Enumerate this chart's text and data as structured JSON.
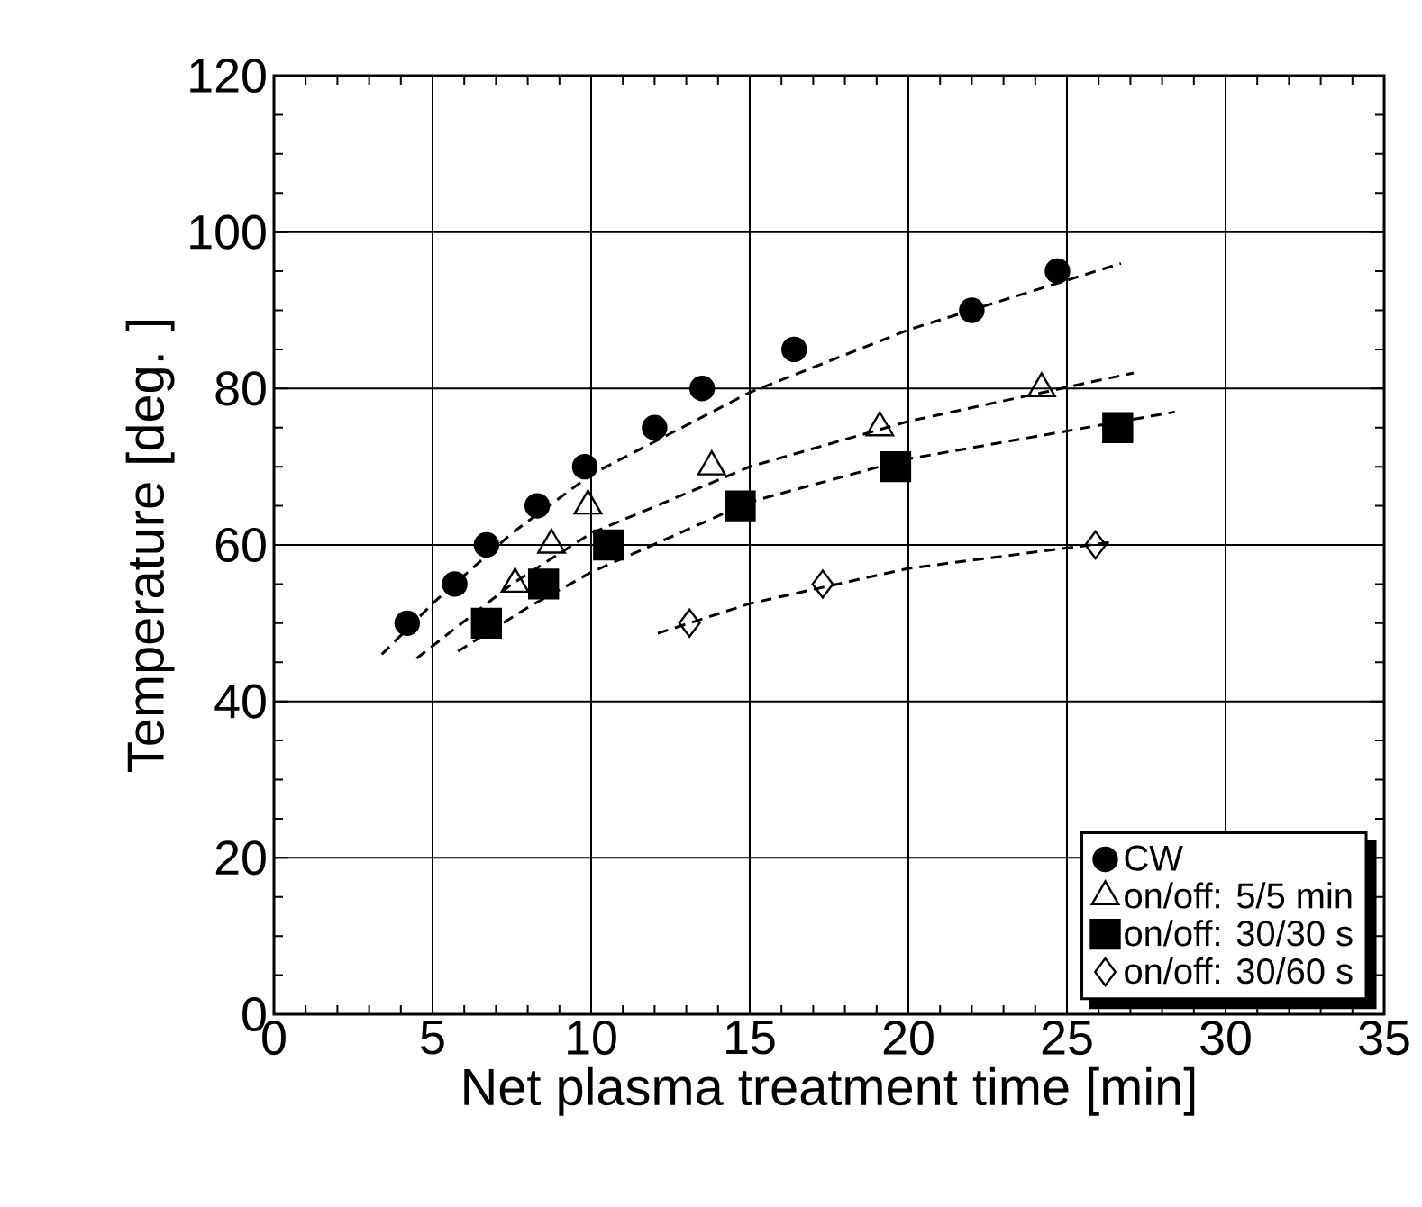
{
  "chart_data": {
    "type": "scatter",
    "xlabel": "Net plasma treatment time [min]",
    "ylabel": "Temperature [deg. ]",
    "xlim": [
      0,
      35
    ],
    "xticks": [
      0,
      5,
      10,
      15,
      20,
      25,
      30,
      35
    ],
    "ylim": [
      0,
      120
    ],
    "yticks": [
      0,
      20,
      40,
      60,
      80,
      100,
      120
    ],
    "grid": true,
    "legend": "bottom right",
    "series": [
      {
        "name": "CW",
        "color": "#000000",
        "marker": "circle",
        "x": [
          4.2,
          5.7,
          6.7,
          8.3,
          9.8,
          12.0,
          13.5,
          16.4,
          22.0,
          24.7
        ],
        "values": [
          50,
          55,
          60,
          65,
          70,
          75,
          80,
          85,
          90,
          95
        ]
      },
      {
        "name": "on/off: 5/5 min",
        "color": "#000000",
        "marker": "triangle",
        "x": [
          7.6,
          8.75,
          9.9,
          13.8,
          19.1,
          24.2
        ],
        "values": [
          55,
          60,
          65,
          70,
          75,
          80
        ]
      },
      {
        "name": "on/off: 30/30 s",
        "color": "#000000",
        "marker": "square",
        "x": [
          6.7,
          8.5,
          10.55,
          14.7,
          19.6,
          26.6
        ],
        "values": [
          50,
          55,
          60,
          65,
          70,
          75
        ]
      },
      {
        "name": "on/off: 30/60 s",
        "color": "#000000",
        "marker": "diamond",
        "x": [
          13.1,
          17.3,
          25.9
        ],
        "values": [
          50,
          55,
          60
        ]
      },
      {
        "type": "line",
        "color": "#000000",
        "line_style": "dashed",
        "marker": "none",
        "x": [
          3.4,
          5,
          7.5,
          10,
          15,
          20,
          26.7
        ],
        "values": [
          46,
          52.5,
          61.5,
          69,
          79.5,
          87.5,
          96
        ]
      },
      {
        "type": "line",
        "color": "#000000",
        "line_style": "dashed",
        "marker": "none",
        "x": [
          4.5,
          7.5,
          10,
          15,
          20,
          27.1
        ],
        "values": [
          45.5,
          55,
          61.5,
          70,
          75.8,
          82
        ]
      },
      {
        "type": "line",
        "color": "#000000",
        "line_style": "dashed",
        "marker": "none",
        "x": [
          5.8,
          8,
          10,
          15,
          20,
          28.4
        ],
        "values": [
          46.4,
          52,
          56.5,
          65.5,
          71,
          77
        ]
      },
      {
        "type": "line",
        "color": "#000000",
        "line_style": "dashed",
        "marker": "none",
        "x": [
          12.1,
          15,
          20,
          26.5
        ],
        "values": [
          48.7,
          52.5,
          57,
          60.4
        ]
      }
    ]
  }
}
